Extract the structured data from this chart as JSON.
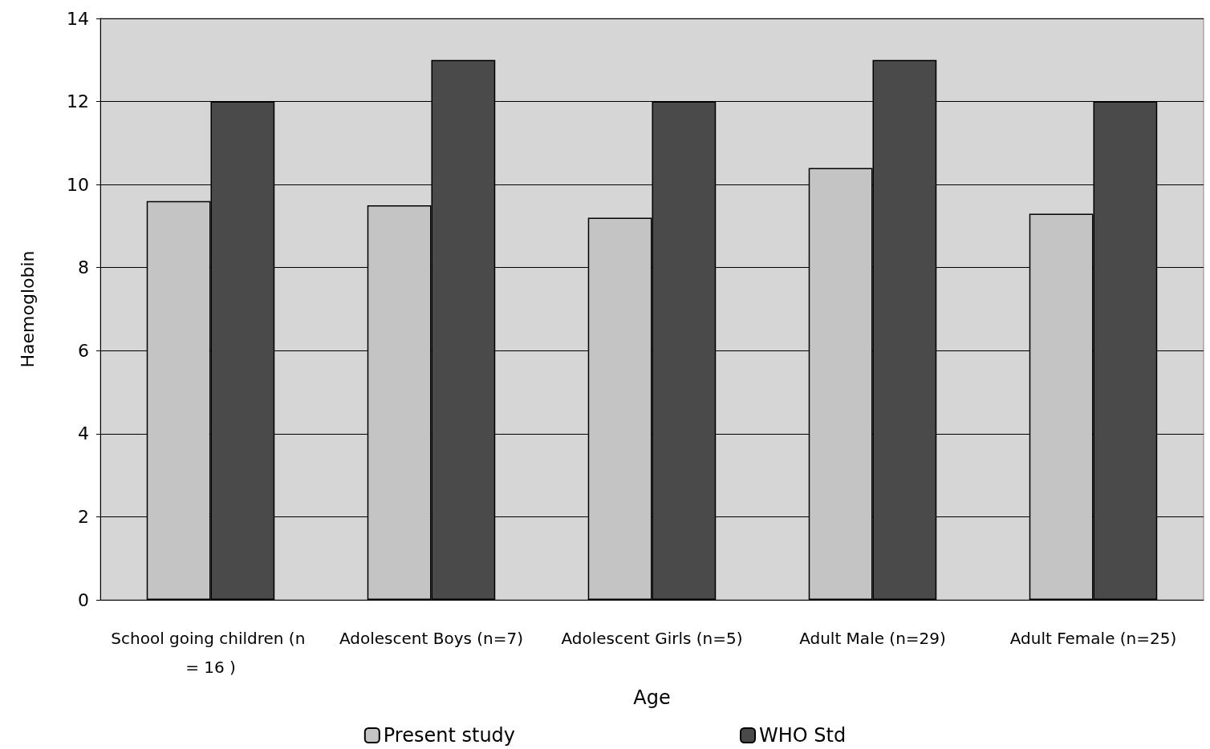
{
  "chart_data": {
    "type": "bar",
    "xlabel": "Age",
    "ylabel": "Haemoglobin",
    "categories": [
      "School going children (n = 16 )",
      "Adolescent Boys (n=7)",
      "Adolescent Girls (n=5)",
      "Adult Male (n=29)",
      "Adult Female (n=25)"
    ],
    "series": [
      {
        "name": "Present study",
        "color": "#c4c4c4",
        "values": [
          9.6,
          9.5,
          9.2,
          10.4,
          9.3
        ]
      },
      {
        "name": "WHO Std",
        "color": "#4a4a4a",
        "values": [
          12,
          13,
          12,
          13,
          12
        ]
      }
    ],
    "ylim": [
      0,
      14
    ],
    "yticks": [
      0,
      2,
      4,
      6,
      8,
      10,
      12,
      14
    ],
    "grid": "y",
    "legend": "bottom"
  }
}
